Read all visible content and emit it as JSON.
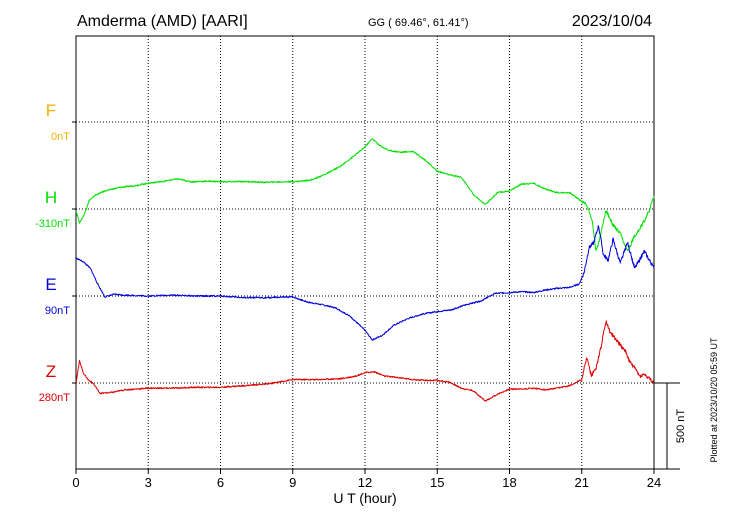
{
  "header": {
    "station": "Amderma (AMD)  [AARI]",
    "coords": "GG ( 69.46°,  61.41°)",
    "date": "2023/10/04"
  },
  "side_note": "Plotted at 2023/10/20 05:59 UT",
  "scale_label": "500 nT",
  "chart_data": {
    "type": "line",
    "xlabel": "U T (hour)",
    "xlim": [
      0,
      24
    ],
    "x_ticks": [
      "0",
      "3",
      "6",
      "9",
      "12",
      "15",
      "18",
      "21",
      "24"
    ],
    "series": [
      {
        "name": "F",
        "baseline": "0nT",
        "color": "#f0b000",
        "x": [],
        "y": []
      },
      {
        "name": "H",
        "baseline": "-310nT",
        "color": "#00e000",
        "x": [
          0,
          0.15,
          0.35,
          0.55,
          0.8,
          1.2,
          1.8,
          2.4,
          3,
          3.6,
          4.2,
          4.8,
          5.5,
          6.2,
          7,
          7.8,
          8.6,
          9.2,
          9.8,
          10.4,
          11,
          11.6,
          12,
          12.3,
          12.6,
          13,
          13.5,
          14,
          14.5,
          15,
          15.5,
          16,
          16.5,
          17,
          17.5,
          18,
          18.5,
          19,
          19.5,
          20,
          20.5,
          20.9,
          21.2,
          21.4,
          21.6,
          21.8,
          22,
          22.3,
          22.6,
          22.9,
          23.2,
          23.5,
          23.8,
          24
        ],
        "y": [
          -320,
          -390,
          -340,
          -260,
          -230,
          -205,
          -185,
          -175,
          -160,
          -150,
          -135,
          -152,
          -148,
          -152,
          -150,
          -155,
          -152,
          -150,
          -140,
          -105,
          -60,
          5,
          50,
          100,
          60,
          30,
          20,
          25,
          -25,
          -90,
          -112,
          -125,
          -225,
          -285,
          -215,
          -205,
          -165,
          -160,
          -195,
          -215,
          -215,
          -255,
          -285,
          -355,
          -555,
          -455,
          -315,
          -405,
          -455,
          -560,
          -465,
          -405,
          -320,
          -235
        ]
      },
      {
        "name": "E",
        "baseline": "90nT",
        "color": "#0000e0",
        "x": [
          0,
          0.3,
          0.6,
          0.9,
          1.2,
          1.6,
          2,
          3,
          4,
          5,
          6,
          7,
          8,
          9,
          9.6,
          10.2,
          10.8,
          11.4,
          12,
          12.3,
          12.7,
          13.2,
          13.8,
          14.4,
          15,
          15.6,
          16.2,
          16.8,
          17.4,
          18,
          18.5,
          19,
          19.5,
          20,
          20.5,
          20.9,
          21.1,
          21.3,
          21.5,
          21.7,
          21.9,
          22.1,
          22.3,
          22.6,
          22.9,
          23.2,
          23.6,
          24
        ],
        "y": [
          310,
          290,
          250,
          160,
          85,
          100,
          95,
          90,
          95,
          90,
          90,
          80,
          80,
          85,
          55,
          40,
          20,
          -30,
          -110,
          -165,
          -140,
          -80,
          -40,
          -15,
          0,
          10,
          40,
          60,
          105,
          110,
          115,
          110,
          125,
          135,
          140,
          160,
          230,
          370,
          400,
          500,
          330,
          300,
          420,
          280,
          400,
          250,
          350,
          250
        ]
      },
      {
        "name": "Z",
        "baseline": "280nT",
        "color": "#e00000",
        "x": [
          0,
          0.15,
          0.3,
          0.5,
          0.7,
          1,
          1.5,
          2,
          3,
          4,
          5,
          6,
          7,
          8,
          9,
          10,
          11,
          11.6,
          12,
          12.4,
          12.8,
          13.2,
          14,
          14.5,
          15,
          15.5,
          16,
          16.5,
          17,
          17.5,
          18,
          18.5,
          19,
          19.5,
          20,
          20.5,
          21,
          21.2,
          21.4,
          21.6,
          21.8,
          22,
          22.2,
          22.4,
          22.6,
          22.8,
          23,
          23.2,
          23.4,
          23.6,
          24
        ],
        "y": [
          280,
          410,
          340,
          300,
          280,
          220,
          225,
          240,
          250,
          250,
          255,
          255,
          265,
          275,
          300,
          300,
          305,
          320,
          340,
          345,
          320,
          315,
          300,
          295,
          295,
          285,
          250,
          235,
          175,
          215,
          245,
          245,
          250,
          240,
          250,
          265,
          300,
          430,
          320,
          370,
          490,
          640,
          570,
          540,
          500,
          470,
          400,
          370,
          320,
          330,
          280
        ]
      }
    ]
  }
}
